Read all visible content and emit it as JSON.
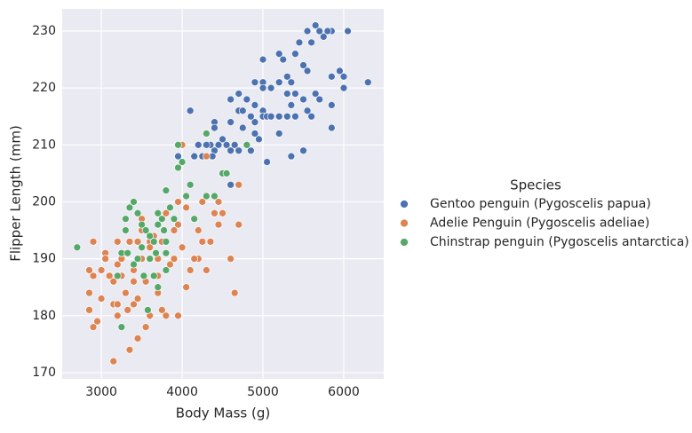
{
  "chart_data": {
    "type": "scatter",
    "x_label": "Body Mass (g)",
    "y_label": "Flipper Length (mm)",
    "legend_title": "Species",
    "legend": "right",
    "grid": true,
    "xlim": [
      2515,
      6495
    ],
    "ylim": [
      168.9,
      233.9
    ],
    "xticks": [
      3000,
      4000,
      5000,
      6000
    ],
    "yticks": [
      170,
      180,
      190,
      200,
      210,
      220,
      230
    ],
    "series": [
      {
        "name": "Gentoo penguin (Pygoscelis papua)",
        "color": "#4c72b0",
        "x": [
          6300,
          6050,
          5850,
          5800,
          5750,
          5650,
          5700,
          5550,
          5600,
          5450,
          5400,
          5200,
          5250,
          5000,
          5500,
          5550,
          5950,
          6000,
          6000,
          5850,
          5300,
          5350,
          5200,
          5100,
          5000,
          5000,
          4900,
          5300,
          5400,
          5650,
          5500,
          5700,
          5850,
          4700,
          4600,
          4800,
          4900,
          5350,
          5550,
          5000,
          4100,
          4700,
          4750,
          4850,
          5000,
          5050,
          5100,
          5200,
          5300,
          5400,
          5600,
          4400,
          4400,
          4600,
          4900,
          4750,
          5850,
          4350,
          4450,
          4400,
          4900,
          5200,
          4500,
          4950,
          4550,
          4650,
          4300,
          4200,
          4000,
          3950,
          4300,
          4800,
          4600,
          4700,
          5350,
          5500,
          5050,
          4600,
          4850,
          4150,
          4375,
          4250
        ],
        "values": [
          221,
          230,
          230,
          230,
          229,
          231,
          230,
          230,
          228,
          228,
          226,
          226,
          225,
          225,
          224,
          223,
          223,
          222,
          220,
          222,
          222,
          221,
          221,
          220,
          221,
          220,
          221,
          219,
          219,
          219,
          218,
          218,
          217,
          219,
          218,
          218,
          217,
          217,
          216,
          216,
          216,
          216,
          216,
          215,
          215,
          215,
          215,
          215,
          215,
          215,
          215,
          214,
          213,
          214,
          214,
          213,
          213,
          210,
          210,
          209,
          212,
          212,
          211,
          211,
          210,
          210,
          210,
          210,
          210,
          208,
          208,
          210,
          209,
          209,
          208,
          209,
          207,
          203,
          209,
          208,
          208,
          208
        ]
      },
      {
        "name": "Adelie Penguin (Pygoscelis adeliae)",
        "color": "#dd8452",
        "x": [
          2900,
          2850,
          2900,
          2850,
          2850,
          2900,
          2950,
          3050,
          3050,
          3000,
          3000,
          3150,
          3150,
          3200,
          3200,
          3150,
          3200,
          3200,
          3300,
          3300,
          3250,
          3300,
          3400,
          3400,
          3400,
          3350,
          3450,
          3450,
          3500,
          3500,
          3500,
          3550,
          3600,
          3600,
          3650,
          3700,
          3700,
          3750,
          3800,
          3800,
          3800,
          3700,
          3750,
          3850,
          3900,
          3950,
          3950,
          4000,
          4050,
          4000,
          4100,
          4150,
          4200,
          4200,
          4250,
          4300,
          4250,
          4300,
          4400,
          4450,
          4450,
          4500,
          4600,
          4650,
          4700,
          4700,
          4050,
          3550,
          3450,
          3325,
          3100,
          3250,
          3600,
          3900,
          4350,
          3350,
          3950,
          4150
        ],
        "values": [
          193,
          188,
          187,
          184,
          181,
          178,
          179,
          191,
          190,
          188,
          183,
          172,
          182,
          182,
          180,
          186,
          189,
          193,
          195,
          191,
          187,
          184,
          188,
          186,
          182,
          174,
          176,
          193,
          197,
          195,
          190,
          186,
          180,
          193,
          194,
          187,
          184,
          181,
          180,
          202,
          198,
          190,
          193,
          189,
          190,
          180,
          200,
          210,
          199,
          192,
          188,
          197,
          195,
          190,
          200,
          208,
          193,
          188,
          198,
          196,
          200,
          198,
          190,
          184,
          196,
          203,
          185,
          178,
          183,
          181,
          187,
          190,
          192,
          195,
          193,
          193,
          196,
          190
        ]
      },
      {
        "name": "Chinstrap penguin (Pygoscelis antarctica)",
        "color": "#55a868",
        "x": [
          2700,
          3250,
          3200,
          3250,
          3300,
          3300,
          3350,
          3400,
          3450,
          3500,
          3500,
          3550,
          3575,
          3600,
          3650,
          3650,
          3700,
          3700,
          3700,
          3750,
          3775,
          3800,
          3800,
          3800,
          3850,
          3900,
          3950,
          3950,
          4000,
          4050,
          4100,
          4150,
          4300,
          4300,
          4400,
          4500,
          4550,
          4800,
          3525,
          3675,
          3450,
          3400,
          3600,
          3325,
          3800
        ],
        "values": [
          192,
          178,
          187,
          191,
          197,
          195,
          199,
          200,
          190,
          196,
          192,
          195,
          181,
          190,
          193,
          187,
          198,
          196,
          185,
          197,
          195,
          202,
          193,
          191,
          199,
          197,
          210,
          206,
          207,
          201,
          203,
          197,
          212,
          201,
          201,
          205,
          205,
          210,
          187,
          191,
          198,
          189,
          194,
          191,
          188
        ]
      }
    ]
  }
}
